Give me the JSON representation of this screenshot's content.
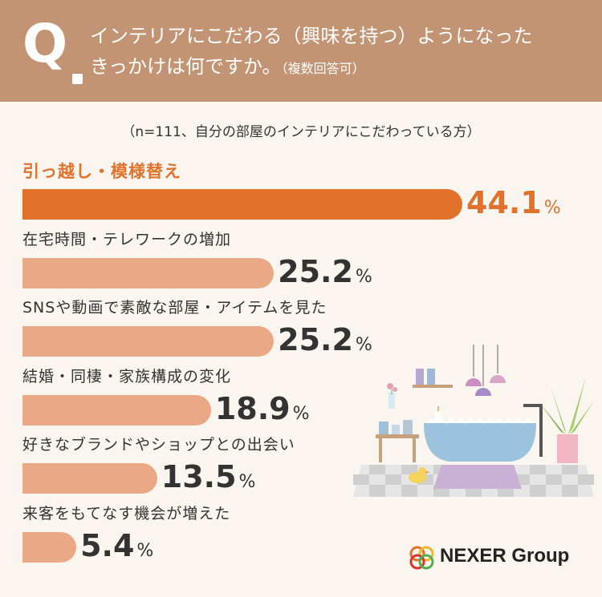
{
  "question": {
    "letter": "Q",
    "line1": "インテリアにこだわる（興味を持つ）ようになった",
    "line2": "きっかけは何ですか。",
    "note": "（複数回答可）"
  },
  "sample_note": "（n=111、自分の部屋のインテリアにこだわっている方）",
  "brand": {
    "name": "NEXER Group"
  },
  "colors": {
    "header_bg": "#c29473",
    "top_bar": "#e2712b",
    "other_bars": "#eaa985",
    "background": "#faf6ef"
  },
  "chart_data": {
    "type": "bar",
    "orientation": "horizontal",
    "unit": "%",
    "categories": [
      "引っ越し・模様替え",
      "在宅時間・テレワークの増加",
      "SNSや動画で素敵な部屋・アイテムを見た",
      "結婚・同棲・家族構成の変化",
      "好きなブランドやショップとの出会い",
      "来客をもてなす機会が増えた"
    ],
    "values": [
      44.1,
      25.2,
      25.2,
      18.9,
      13.5,
      5.4
    ],
    "value_labels": [
      "44.1",
      "25.2",
      "25.2",
      "18.9",
      "13.5",
      "5.4"
    ],
    "highlight_index": 0
  }
}
